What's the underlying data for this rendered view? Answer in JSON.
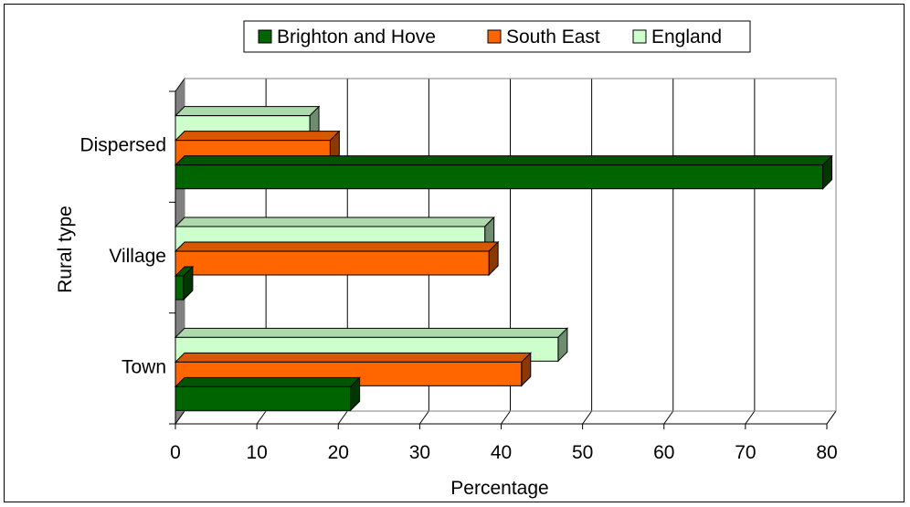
{
  "chart_data": {
    "type": "bar",
    "orientation": "horizontal",
    "three_d": true,
    "categories": [
      "Dispersed",
      "Village",
      "Town"
    ],
    "series": [
      {
        "name": "Brighton and Hove",
        "color": "#006400",
        "values": [
          79.5,
          1,
          21.5
        ]
      },
      {
        "name": "South East",
        "color": "#FF6600",
        "values": [
          19,
          38.5,
          42.5
        ]
      },
      {
        "name": "England",
        "color": "#CCFFCC",
        "values": [
          16.5,
          38,
          47
        ]
      }
    ],
    "xlabel": "Percentage",
    "ylabel": "Rural type",
    "xlim": [
      0,
      80
    ],
    "xticks": [
      "0",
      "10",
      "20",
      "30",
      "40",
      "50",
      "60",
      "70",
      "80"
    ],
    "grid": true,
    "legend_position": "top"
  }
}
